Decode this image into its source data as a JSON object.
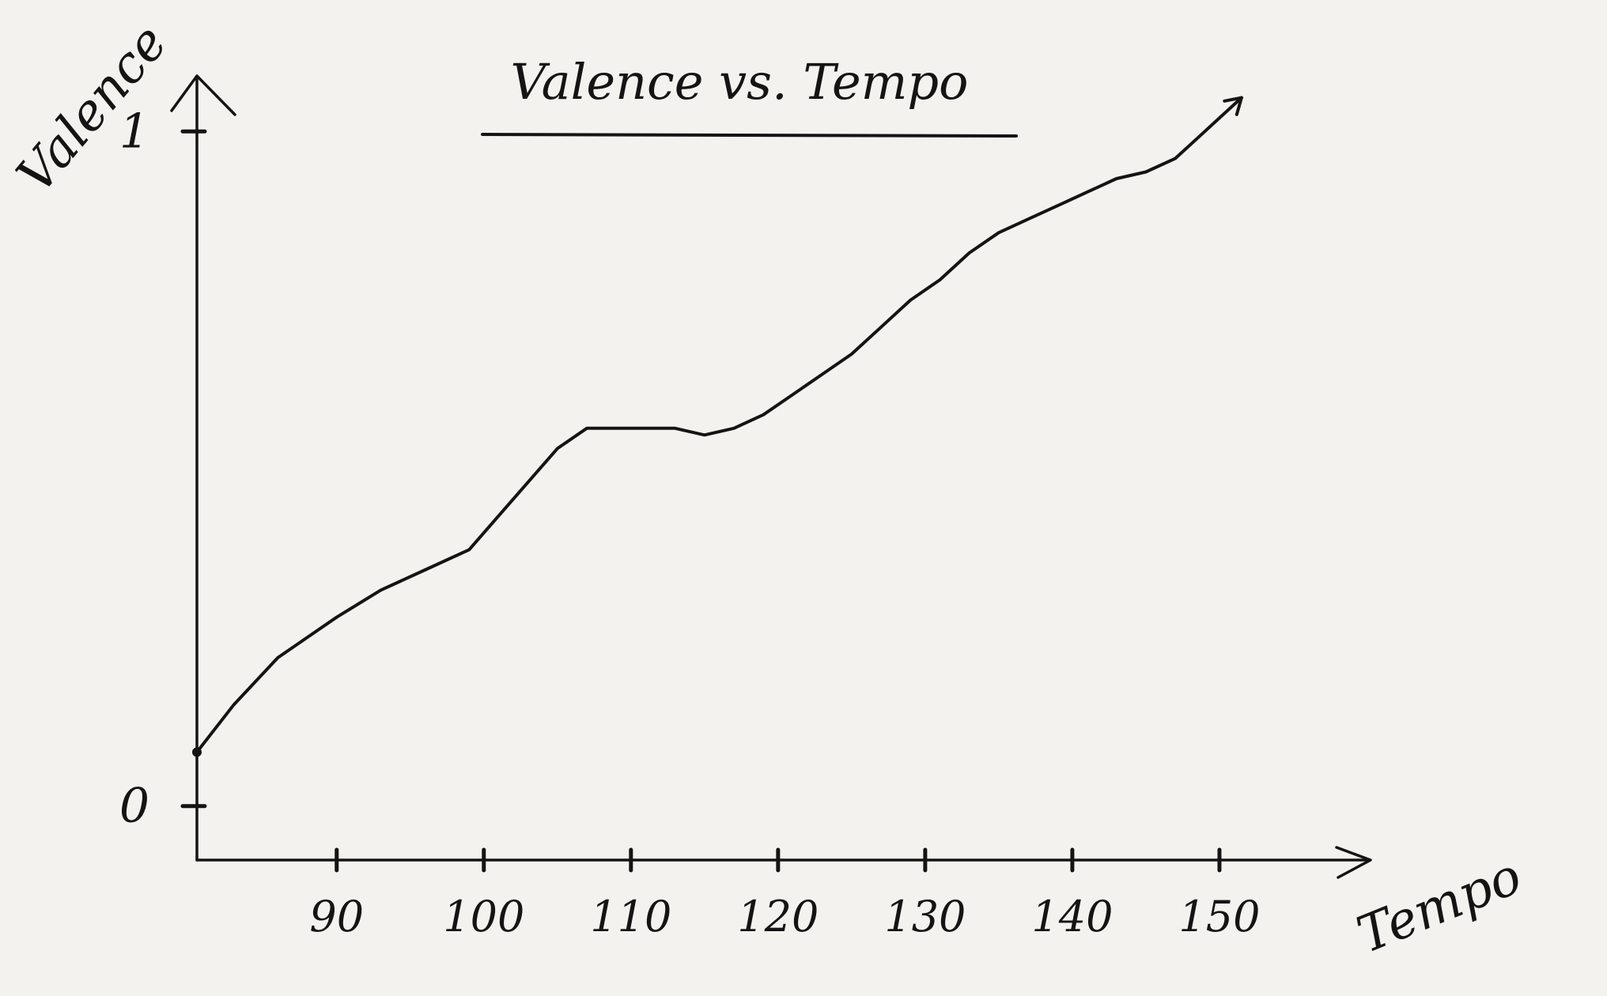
{
  "chart_data": {
    "type": "line",
    "title": "Valence vs. Tempo",
    "xlabel": "Tempo",
    "ylabel": "Valence",
    "x_ticks": [
      "90",
      "100",
      "110",
      "120",
      "130",
      "140",
      "150"
    ],
    "x_tick_values": [
      90,
      100,
      110,
      120,
      130,
      140,
      150
    ],
    "y_ticks": [
      "0",
      "1"
    ],
    "y_tick_values": [
      0,
      1
    ],
    "xlim": [
      80.5,
      160
    ],
    "ylim": [
      -0.08,
      1.08
    ],
    "grid": false,
    "legend": "none",
    "series": [
      {
        "x": [
          80.5,
          83,
          86,
          88,
          90,
          93,
          96,
          99,
          101,
          103,
          105,
          107,
          109,
          111,
          113,
          115,
          117,
          119,
          121,
          123,
          125,
          127,
          129,
          131,
          133,
          135,
          137,
          139,
          141,
          143,
          145,
          147,
          149,
          151.5
        ],
        "y": [
          0.08,
          0.15,
          0.22,
          0.25,
          0.28,
          0.32,
          0.35,
          0.38,
          0.43,
          0.48,
          0.53,
          0.56,
          0.56,
          0.56,
          0.56,
          0.55,
          0.56,
          0.58,
          0.61,
          0.64,
          0.67,
          0.71,
          0.75,
          0.78,
          0.82,
          0.85,
          0.87,
          0.89,
          0.91,
          0.93,
          0.94,
          0.96,
          1.0,
          1.05
        ]
      }
    ]
  }
}
